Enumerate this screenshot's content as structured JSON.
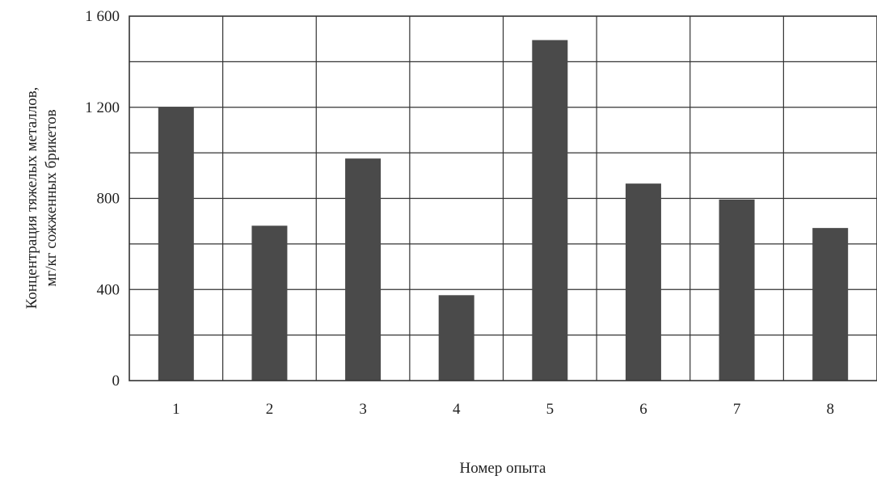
{
  "chart_data": {
    "type": "bar",
    "categories": [
      "1",
      "2",
      "3",
      "4",
      "5",
      "6",
      "7",
      "8"
    ],
    "values": [
      1200,
      680,
      975,
      375,
      1495,
      865,
      795,
      670
    ],
    "ylim": [
      0,
      1600
    ],
    "yticks": [
      0,
      400,
      800,
      1200,
      1600
    ],
    "ytick_labels": [
      "0",
      "400",
      "800",
      "1 200",
      "1 600"
    ],
    "xlabel": "Номер опыта",
    "ylabel_line1": "Концентрация тяжелых металлов,",
    "ylabel_line2": "мг/кг сожженных брикетов",
    "grid": true,
    "bar_color": "#4a4a4a",
    "grid_color": "#333333"
  }
}
